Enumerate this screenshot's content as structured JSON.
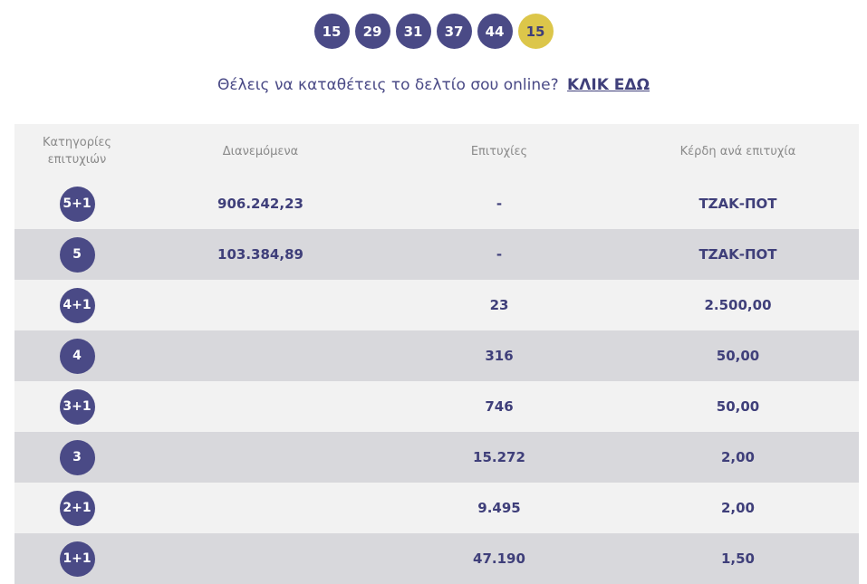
{
  "draw": {
    "numbers": [
      "15",
      "29",
      "31",
      "37",
      "44"
    ],
    "joker": "15"
  },
  "promo": {
    "text": "Θέλεις να καταθέτεις το δελτίο σου online?",
    "link_label": "ΚΛΙΚ ΕΔΩ"
  },
  "table": {
    "headers": {
      "category": "Κατηγορίες επιτυχιών",
      "distributed": "Διανεμόμενα",
      "winners": "Επιτυχίες",
      "prize": "Κέρδη ανά επιτυχία"
    },
    "rows": [
      {
        "category": "5+1",
        "distributed": "906.242,23",
        "winners": "-",
        "prize": "ΤΖΑΚ-ΠΟΤ"
      },
      {
        "category": "5",
        "distributed": "103.384,89",
        "winners": "-",
        "prize": "ΤΖΑΚ-ΠΟΤ"
      },
      {
        "category": "4+1",
        "distributed": "",
        "winners": "23",
        "prize": "2.500,00"
      },
      {
        "category": "4",
        "distributed": "",
        "winners": "316",
        "prize": "50,00"
      },
      {
        "category": "3+1",
        "distributed": "",
        "winners": "746",
        "prize": "50,00"
      },
      {
        "category": "3",
        "distributed": "",
        "winners": "15.272",
        "prize": "2,00"
      },
      {
        "category": "2+1",
        "distributed": "",
        "winners": "9.495",
        "prize": "2,00"
      },
      {
        "category": "1+1",
        "distributed": "",
        "winners": "47.190",
        "prize": "1,50"
      }
    ]
  },
  "colors": {
    "ball": "#4a4a86",
    "joker_ball": "#dcc64a",
    "row_light": "#f2f2f2",
    "row_dark": "#d8d8dc"
  }
}
